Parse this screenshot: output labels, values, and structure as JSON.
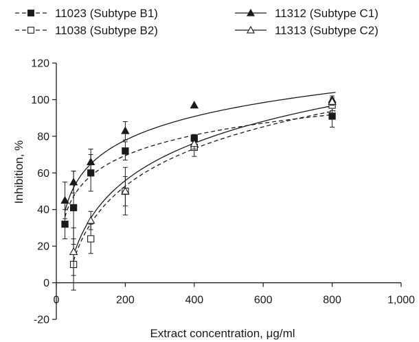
{
  "chart_data": {
    "type": "scatter",
    "xlabel": "Extract concentration, μg/ml",
    "ylabel": "Inhibition, %",
    "xlim": [
      0,
      1000
    ],
    "ylim": [
      -20,
      120
    ],
    "x_ticks": [
      0,
      200,
      400,
      600,
      800,
      1000
    ],
    "x_tick_labels": [
      "0",
      "200",
      "400",
      "600",
      "800",
      "1,000"
    ],
    "y_ticks": [
      -20,
      0,
      20,
      40,
      60,
      80,
      100,
      120
    ],
    "y_tick_labels": [
      "-20",
      "0",
      "20",
      "40",
      "60",
      "80",
      "100",
      "120"
    ],
    "grid": false,
    "legend_position": "top",
    "series": [
      {
        "name": "11023 (Subtype B1)",
        "marker": "square-filled",
        "line_style": "dashed",
        "x": [
          25,
          50,
          100,
          200,
          400,
          800
        ],
        "y": [
          32,
          41,
          60,
          72,
          79,
          91
        ],
        "error": [
          8,
          20,
          10,
          5,
          2,
          6
        ],
        "fit": {
          "form": "logarithmic",
          "x_range": [
            25,
            810
          ],
          "y_start": 36,
          "y_end": 92
        }
      },
      {
        "name": "11038 (Subtype B2)",
        "marker": "square-open",
        "line_style": "dashed",
        "x": [
          50,
          100,
          200,
          400,
          800
        ],
        "y": [
          10,
          24,
          50,
          74,
          97
        ],
        "error": [
          14,
          8,
          13,
          5,
          3
        ],
        "fit": {
          "form": "logarithmic",
          "x_range": [
            50,
            810
          ],
          "y_start": 12,
          "y_end": 94
        }
      },
      {
        "name": "11312 (Subtype C1)",
        "marker": "triangle-filled",
        "line_style": "solid",
        "x": [
          25,
          50,
          100,
          200,
          400,
          800
        ],
        "y": [
          45,
          55,
          66,
          83,
          97,
          100
        ],
        "error": [
          10,
          6,
          7,
          5,
          0,
          2
        ],
        "fit": {
          "form": "logarithmic",
          "x_range": [
            25,
            810
          ],
          "y_start": 39,
          "y_end": 104
        }
      },
      {
        "name": "11313 (Subtype C2)",
        "marker": "triangle-open",
        "line_style": "solid",
        "x": [
          50,
          100,
          200,
          400,
          800
        ],
        "y": [
          17,
          34,
          50,
          76,
          99
        ],
        "error": [
          13,
          5,
          8,
          3,
          2
        ],
        "fit": {
          "form": "logarithmic",
          "x_range": [
            50,
            810
          ],
          "y_start": 15,
          "y_end": 97
        }
      }
    ]
  }
}
